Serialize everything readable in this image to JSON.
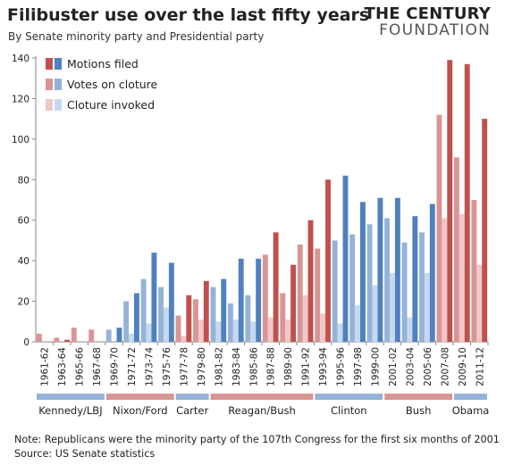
{
  "header": {
    "title": "Filibuster use over the last fifty years",
    "subtitle": "By Senate minority party and Presidential party",
    "logo_line1": "THE CENTURY",
    "logo_line2": "FOUNDATION"
  },
  "notes": {
    "note": "Note: Republicans were the minority party of the 107th Congress for the first six months of 2001",
    "source": "Source: US Senate statistics"
  },
  "colors": {
    "rep_motions": "#c0504d",
    "rep_votes": "#d99594",
    "rep_invoked": "#efc8c7",
    "dem_motions": "#4f81bd",
    "dem_votes": "#95b3d7",
    "dem_invoked": "#c6d9f1",
    "era_dem": "#95b3d7",
    "era_rep": "#d99594"
  },
  "chart_data": {
    "type": "bar",
    "categories": [
      "1961-62",
      "1963-64",
      "1965-66",
      "1967-68",
      "1969-70",
      "1971-72",
      "1973-74",
      "1975-76",
      "1977-78",
      "1979-80",
      "1981-82",
      "1983-84",
      "1985-86",
      "1987-88",
      "1989-90",
      "1991-92",
      "1993-94",
      "1995-96",
      "1997-98",
      "1999-00",
      "2001-02",
      "2003-04",
      "2005-06",
      "2007-08",
      "2009-10",
      "2011-12"
    ],
    "minority_party": [
      "R",
      "R",
      "R",
      "R",
      "D",
      "D",
      "D",
      "D",
      "R",
      "R",
      "D",
      "D",
      "D",
      "R",
      "R",
      "R",
      "R",
      "D",
      "D",
      "D",
      "D",
      "D",
      "D",
      "R",
      "R",
      "R"
    ],
    "series": [
      {
        "name": "Motions filed",
        "values": [
          0,
          1,
          0,
          0,
          7,
          24,
          44,
          39,
          23,
          30,
          31,
          41,
          41,
          54,
          38,
          60,
          80,
          82,
          69,
          71,
          71,
          62,
          68,
          139,
          137,
          110
        ]
      },
      {
        "name": "Votes on cloture",
        "values": [
          4,
          2,
          7,
          6,
          6,
          20,
          31,
          27,
          13,
          21,
          27,
          19,
          23,
          43,
          24,
          48,
          46,
          50,
          53,
          58,
          61,
          49,
          54,
          112,
          91,
          70
        ]
      },
      {
        "name": "Cloture invoked",
        "values": [
          0,
          0,
          0,
          0,
          0,
          4,
          9,
          17,
          3,
          11,
          10,
          11,
          10,
          12,
          11,
          23,
          14,
          9,
          18,
          28,
          34,
          12,
          34,
          61,
          63,
          38
        ]
      }
    ],
    "eras": [
      {
        "label": "Kennedy/LBJ",
        "start": 0,
        "end": 3,
        "party": "D"
      },
      {
        "label": "Nixon/Ford",
        "start": 4,
        "end": 7,
        "party": "R"
      },
      {
        "label": "Carter",
        "start": 8,
        "end": 9,
        "party": "D"
      },
      {
        "label": "Reagan/Bush",
        "start": 10,
        "end": 15,
        "party": "R"
      },
      {
        "label": "Clinton",
        "start": 16,
        "end": 19,
        "party": "D"
      },
      {
        "label": "Bush",
        "start": 20,
        "end": 23,
        "party": "R"
      },
      {
        "label": "Obama",
        "start": 24,
        "end": 25,
        "party": "D"
      }
    ],
    "legend_labels": [
      "Motions filed",
      "Votes on cloture",
      "Cloture invoked"
    ],
    "legend_position": "top-left",
    "ylim": [
      0,
      140
    ],
    "yticks": [
      0,
      20,
      40,
      60,
      80,
      100,
      120,
      140
    ],
    "grid": false
  }
}
